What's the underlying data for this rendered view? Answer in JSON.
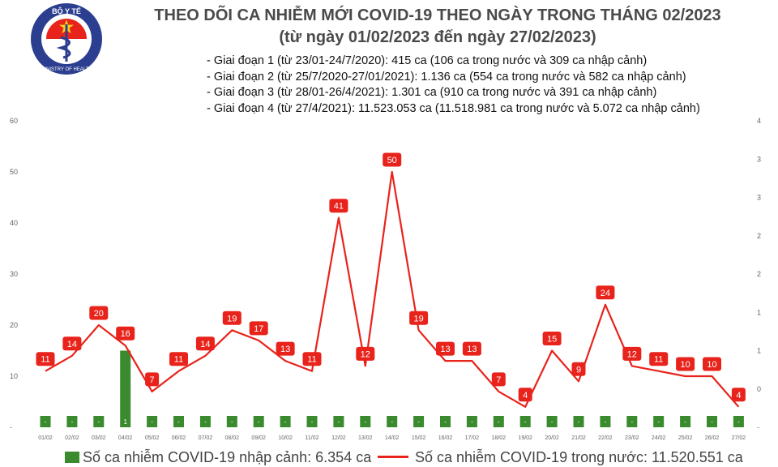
{
  "logo": {
    "top_text": "BỘ Y TẾ",
    "bottom_text": "MINISTRY OF HEALTH"
  },
  "header": {
    "title": "THEO DÕI CA NHIỄM MỚI COVID-19 THEO NGÀY TRONG THÁNG 02/2023",
    "subtitle": "(từ ngày 01/02/2023 đến ngày 27/02/2023)",
    "phases": [
      "- Giai đoạn 1 (từ 23/01-24/7/2020): 415 ca (106 ca trong nước và 309 ca nhập cảnh)",
      "- Giai đoạn 2 (từ 25/7/2020-27/01/2021): 1.136 ca (554 ca trong nước và 582 ca nhập cảnh)",
      "- Giai đoạn 3 (từ 28/01-26/4/2021): 1.301 ca (910 ca trong nước và 391 ca nhập cảnh)",
      "- Giai đoạn 4 (từ 27/4/2021): 11.523.053 ca (11.518.981 ca trong nước và 5.072 ca nhập cảnh)"
    ]
  },
  "chart_data": {
    "type": "bar+line",
    "categories": [
      "01/02",
      "02/02",
      "03/02",
      "04/02",
      "05/02",
      "06/02",
      "07/02",
      "08/02",
      "09/02",
      "10/02",
      "11/02",
      "12/02",
      "13/02",
      "14/02",
      "15/02",
      "16/02",
      "17/02",
      "18/02",
      "19/02",
      "20/02",
      "21/02",
      "22/02",
      "23/02",
      "24/02",
      "25/02",
      "26/02",
      "27/02"
    ],
    "series": [
      {
        "name": "Số ca nhiễm COVID-19 nhập cảnh: 6.354 ca",
        "type": "bar",
        "axis": "right",
        "values": [
          0,
          0,
          0,
          1,
          0,
          0,
          0,
          0,
          0,
          0,
          0,
          0,
          0,
          0,
          0,
          0,
          0,
          0,
          0,
          0,
          0,
          0,
          0,
          0,
          0,
          0,
          0
        ],
        "bar_labels": [
          "-",
          "-",
          "-",
          "1",
          "-",
          "-",
          "-",
          "-",
          "-",
          "-",
          "-",
          "-",
          "-",
          "-",
          "-",
          "-",
          "-",
          "-",
          "-",
          "-",
          "-",
          "-",
          "-",
          "-",
          "-",
          "-",
          "-"
        ]
      },
      {
        "name": "Số ca nhiễm COVID-19 trong nước: 11.520.551 ca",
        "type": "line",
        "axis": "left",
        "values": [
          11,
          14,
          20,
          16,
          7,
          11,
          14,
          19,
          17,
          13,
          11,
          41,
          12,
          50,
          19,
          13,
          13,
          7,
          4,
          15,
          9,
          24,
          12,
          11,
          10,
          10,
          4
        ]
      }
    ],
    "left_axis": {
      "ticks": [
        0,
        10,
        20,
        30,
        40,
        50,
        60
      ],
      "tick_labels": [
        "-",
        "10",
        "20",
        "30",
        "40",
        "50",
        "60"
      ],
      "range": [
        0,
        60
      ]
    },
    "right_axis": {
      "ticks": [
        0,
        0.5,
        1,
        1.5,
        2,
        2.5,
        3,
        3.5,
        4
      ],
      "tick_labels": [
        "-",
        "0",
        "1",
        "1",
        "2",
        "2",
        "3",
        "3",
        "4"
      ],
      "range": [
        0,
        4
      ]
    },
    "grid": false,
    "legend_position": "bottom",
    "colors": {
      "bar": "#3a8a2e",
      "line": "#e8231b",
      "label_bg": "#e8231b",
      "label_text": "#ffffff",
      "axis_text": "#666666"
    }
  }
}
